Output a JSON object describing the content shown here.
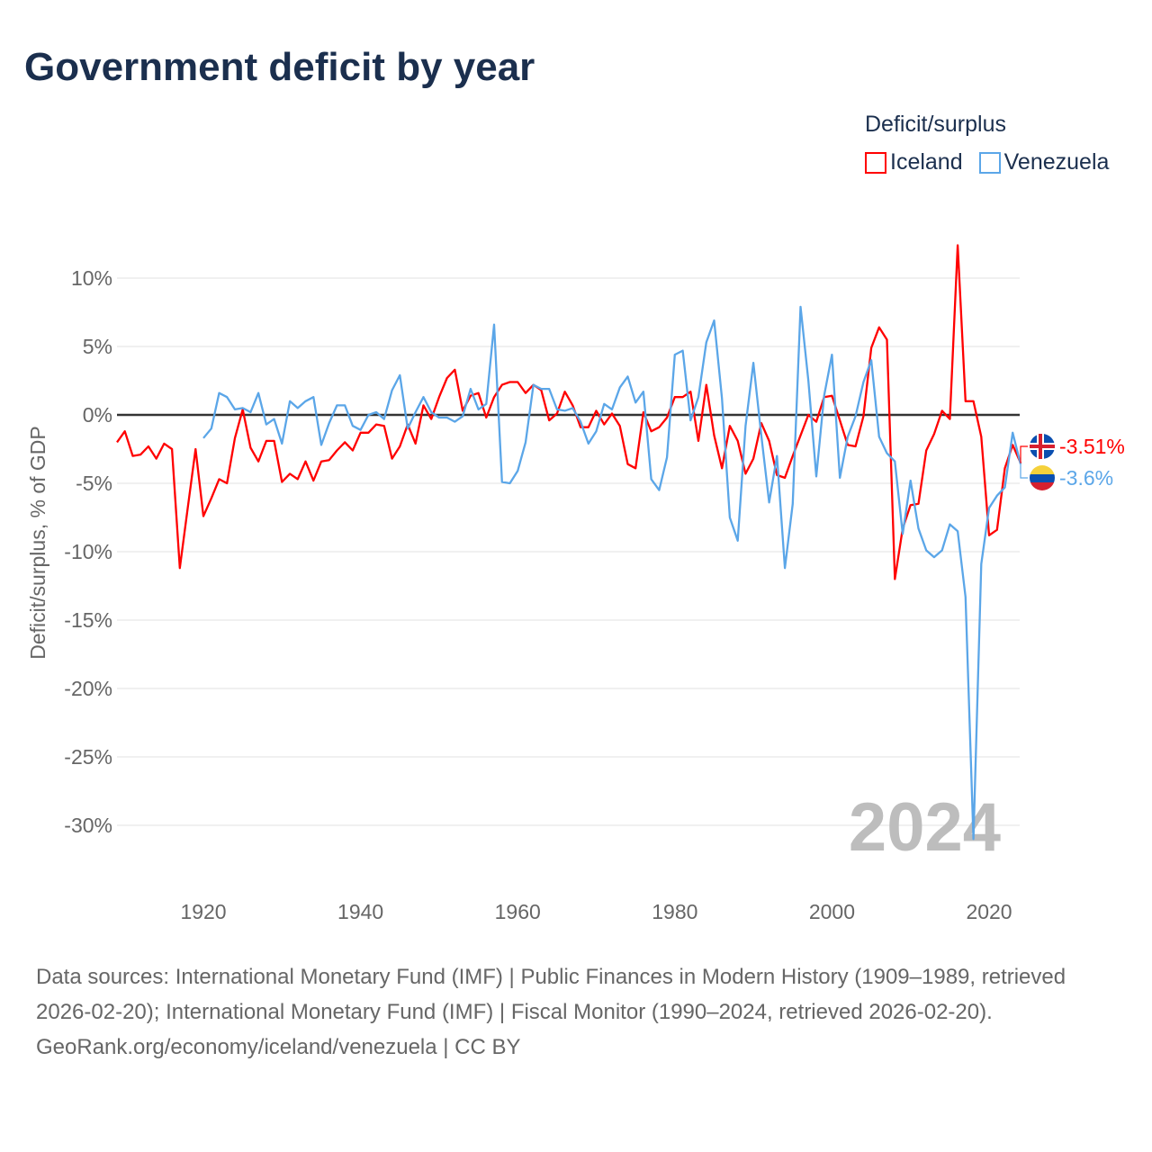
{
  "title": "Government deficit by year",
  "legend": {
    "title": "Deficit/surplus",
    "items": [
      {
        "name": "Iceland",
        "color": "#ff0000"
      },
      {
        "name": "Venezuela",
        "color": "#5ba6e8"
      }
    ]
  },
  "footer": {
    "sources": "Data sources: International Monetary Fund (IMF) | Public Finances in Modern History (1909–1989, retrieved 2026-02-20); International Monetary Fund (IMF) | Fiscal Monitor (1990–2024, retrieved 2026-02-20).",
    "credit": "GeoRank.org/economy/iceland/venezuela | CC BY"
  },
  "chart_data": {
    "type": "line",
    "title": "Government deficit by year",
    "xlabel": "",
    "ylabel": "Deficit/surplus, % of GDP",
    "xlim": [
      1909,
      2024
    ],
    "ylim": [
      -33,
      13
    ],
    "x_ticks": [
      1920,
      1940,
      1960,
      1980,
      2000,
      2020
    ],
    "y_ticks": [
      {
        "v": 10,
        "label": "10%"
      },
      {
        "v": 5,
        "label": "5%"
      },
      {
        "v": 0,
        "label": "0%"
      },
      {
        "v": -5,
        "label": "-5%"
      },
      {
        "v": -10,
        "label": "-10%"
      },
      {
        "v": -15,
        "label": "-15%"
      },
      {
        "v": -20,
        "label": "-20%"
      },
      {
        "v": -25,
        "label": "-25%"
      },
      {
        "v": -30,
        "label": "-30%"
      }
    ],
    "watermark_year": "2024",
    "grid": true,
    "legend_position": "top-right",
    "series": [
      {
        "name": "Iceland",
        "color": "#ff0000",
        "start_year": 1909,
        "end_label": "-3.51%",
        "values": [
          -2.0,
          -1.2,
          -3.0,
          -2.9,
          -2.3,
          -3.2,
          -2.1,
          -2.5,
          -11.2,
          -6.8,
          -2.5,
          -7.4,
          -6.1,
          -4.7,
          -5.0,
          -1.7,
          0.4,
          -2.4,
          -3.4,
          -1.9,
          -1.9,
          -4.9,
          -4.3,
          -4.7,
          -3.4,
          -4.8,
          -3.4,
          -3.3,
          -2.6,
          -2.0,
          -2.6,
          -1.3,
          -1.3,
          -0.7,
          -0.8,
          -3.2,
          -2.3,
          -0.7,
          -2.1,
          0.7,
          -0.3,
          1.3,
          2.7,
          3.3,
          0.3,
          1.4,
          1.6,
          -0.2,
          1.3,
          2.2,
          2.4,
          2.4,
          1.6,
          2.2,
          1.8,
          -0.4,
          0.1,
          1.7,
          0.7,
          -0.9,
          -0.9,
          0.3,
          -0.7,
          0.1,
          -0.8,
          -3.6,
          -3.9,
          0.2,
          -1.2,
          -0.9,
          -0.2,
          1.3,
          1.3,
          1.7,
          -1.9,
          2.2,
          -1.5,
          -3.9,
          -0.8,
          -1.9,
          -4.3,
          -3.2,
          -0.6,
          -1.9,
          -4.4,
          -4.6,
          -3.0,
          -1.5,
          0.0,
          -0.5,
          1.3,
          1.4,
          -0.4,
          -2.2,
          -2.3,
          -0.1,
          4.9,
          6.4,
          5.5,
          -12.0,
          -8.3,
          -6.6,
          -6.5,
          -2.6,
          -1.4,
          0.3,
          -0.3,
          12.4,
          1.0,
          1.0,
          -1.6,
          -8.8,
          -8.4,
          -3.9,
          -2.2,
          -3.51
        ]
      },
      {
        "name": "Venezuela",
        "color": "#5ba6e8",
        "start_year": 1920,
        "end_label": "-3.6%",
        "values": [
          -1.7,
          -1.0,
          1.6,
          1.3,
          0.4,
          0.5,
          0.2,
          1.6,
          -0.7,
          -0.3,
          -2.1,
          1.0,
          0.5,
          1.0,
          1.3,
          -2.2,
          -0.6,
          0.7,
          0.7,
          -0.8,
          -1.1,
          0.0,
          0.2,
          -0.3,
          1.8,
          2.9,
          -1.0,
          0.2,
          1.3,
          0.2,
          -0.2,
          -0.2,
          -0.5,
          -0.1,
          1.9,
          0.4,
          0.8,
          6.6,
          -4.9,
          -5.0,
          -4.1,
          -2.0,
          2.2,
          1.9,
          1.9,
          0.4,
          0.3,
          0.5,
          -0.5,
          -2.1,
          -1.2,
          0.8,
          0.4,
          2.0,
          2.8,
          0.9,
          1.7,
          -4.7,
          -5.5,
          -3.1,
          4.4,
          4.7,
          -0.4,
          1.3,
          5.3,
          6.9,
          1.2,
          -7.5,
          -9.2,
          -0.8,
          3.8,
          -1.5,
          -6.4,
          -3.0,
          -11.2,
          -6.5,
          7.9,
          2.5,
          -4.5,
          1.4,
          4.4,
          -4.6,
          -1.6,
          -0.1,
          2.4,
          4.0,
          -1.6,
          -2.8,
          -3.4,
          -8.7,
          -4.8,
          -8.3,
          -9.9,
          -10.4,
          -9.9,
          -8.0,
          -8.5,
          -13.3,
          -31.0,
          -10.9,
          -6.8,
          -5.9,
          -5.3,
          -1.3,
          -3.6
        ]
      }
    ]
  }
}
